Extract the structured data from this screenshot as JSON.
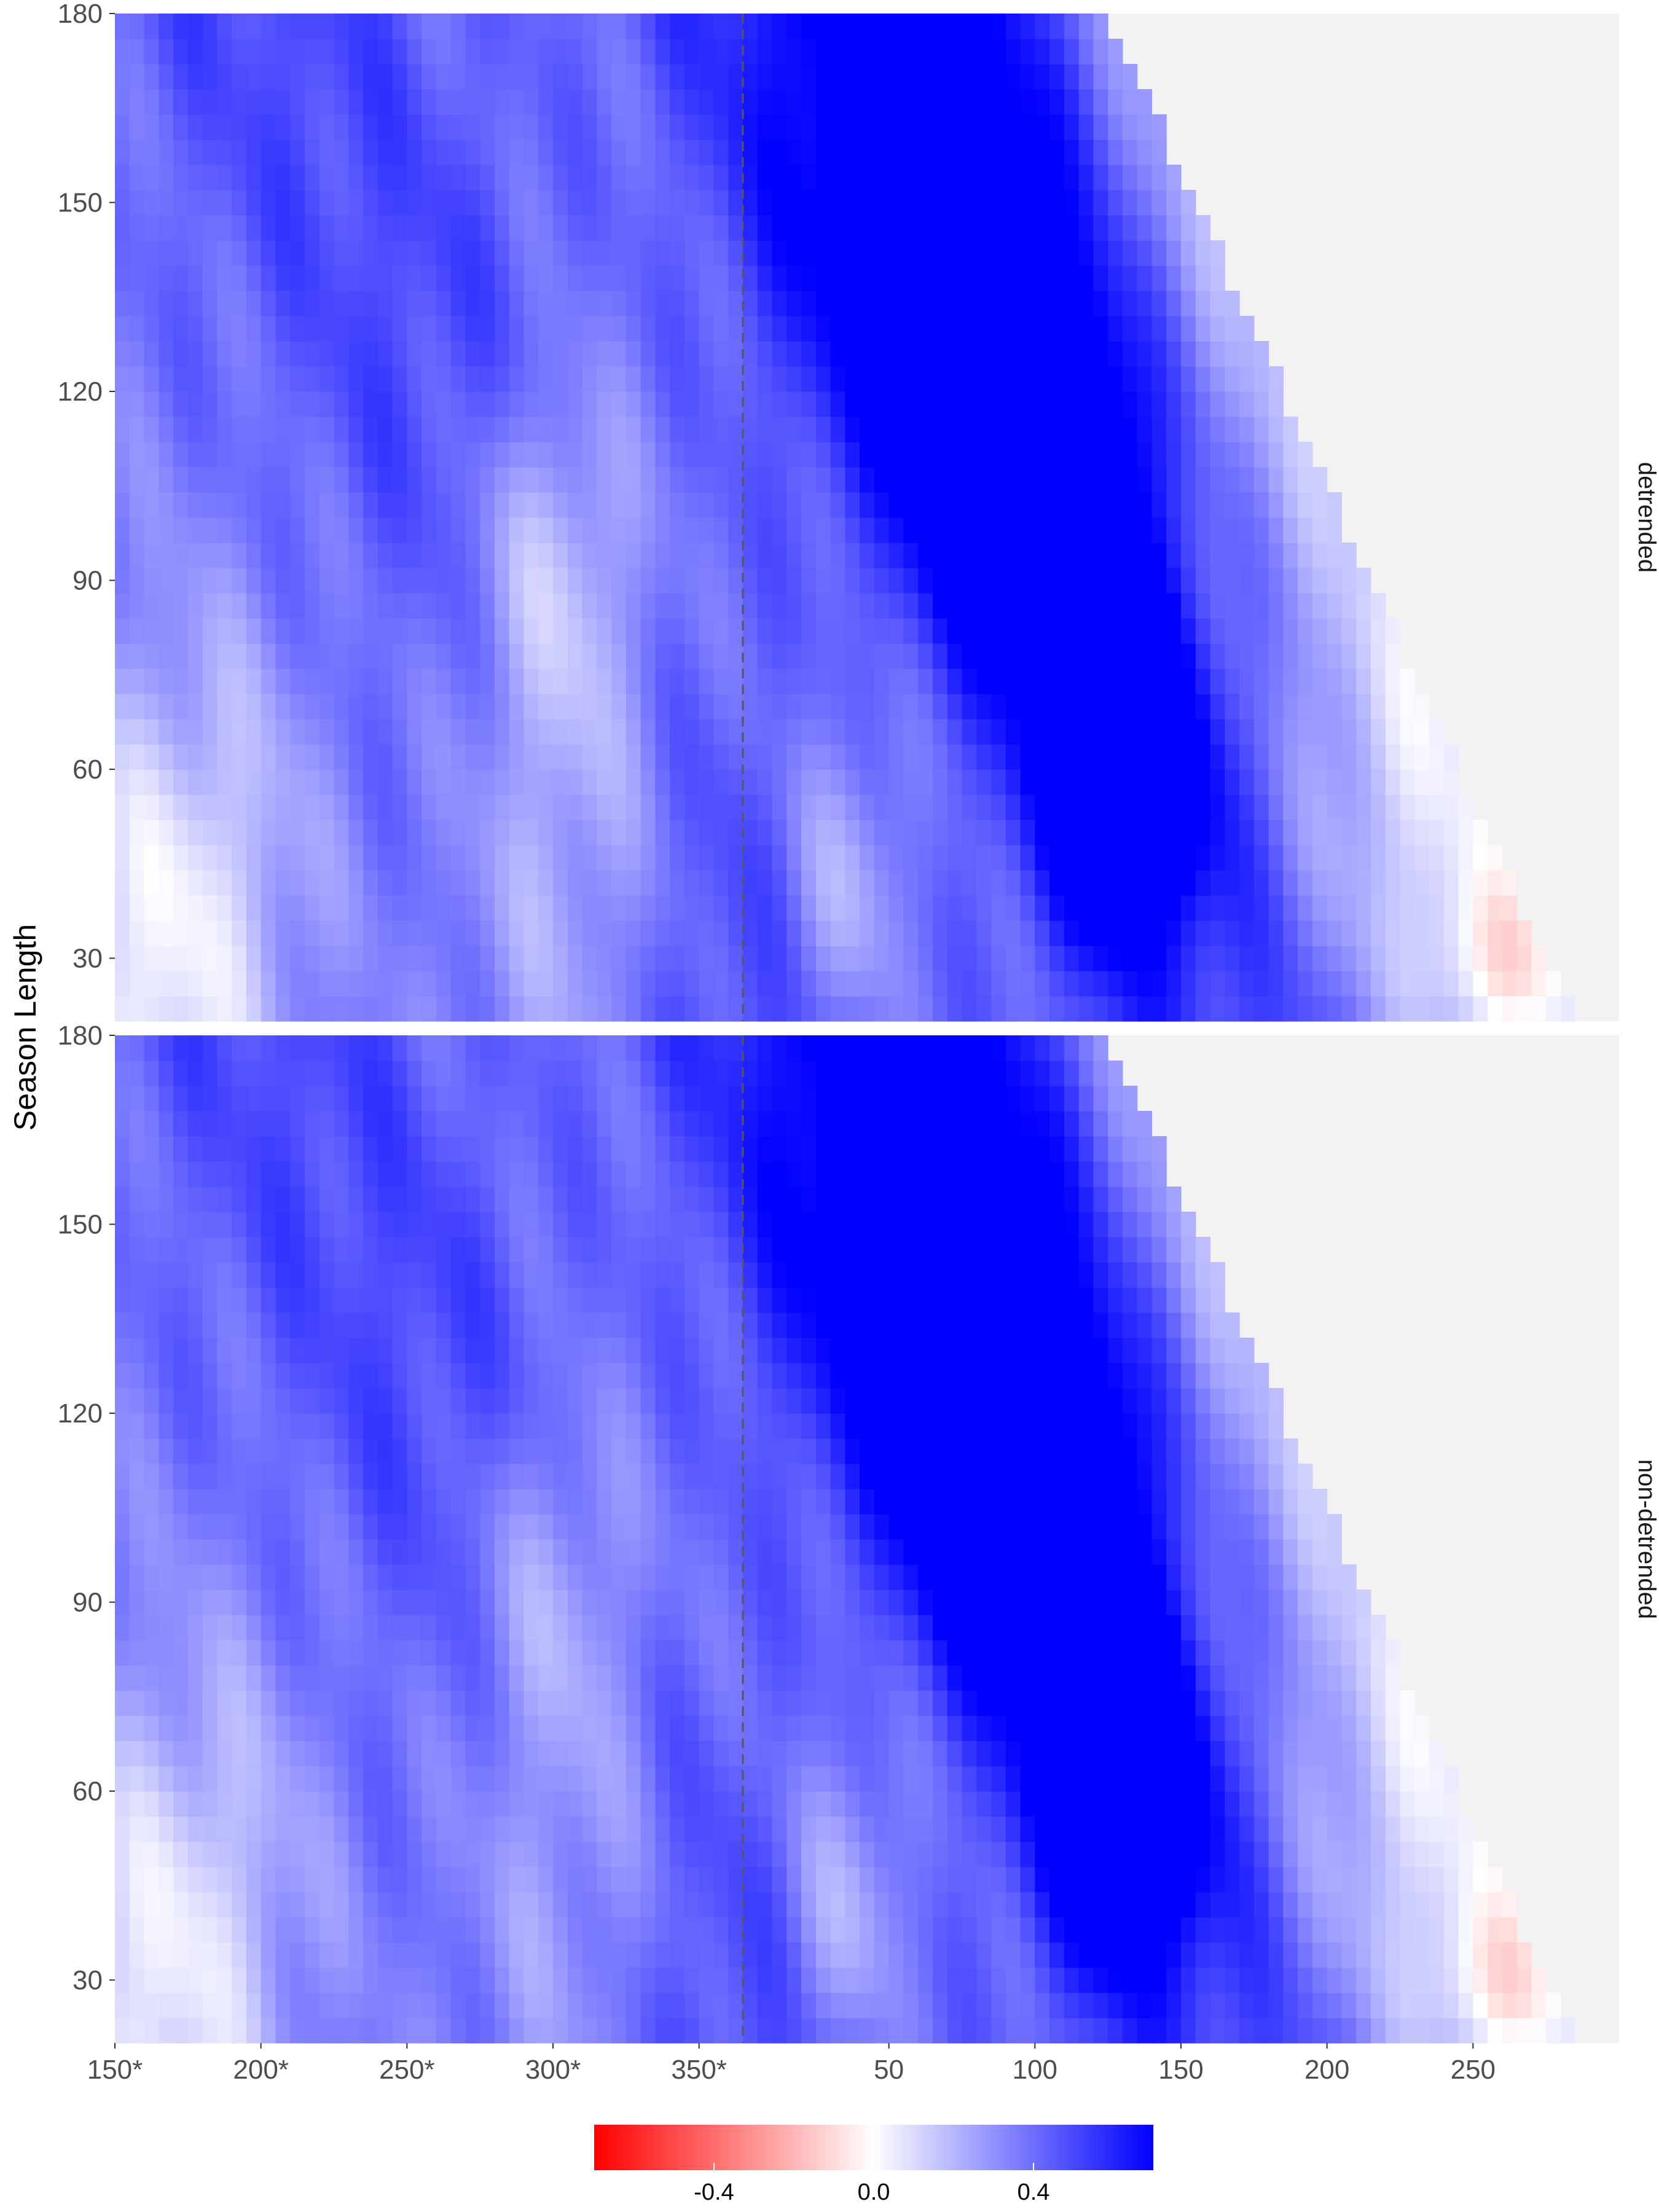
{
  "chart_data": {
    "type": "heatmap",
    "ylabel": "Season Length",
    "xlabel": "",
    "title": "",
    "x_ticks": [
      "150*",
      "200*",
      "250*",
      "300*",
      "350*",
      "50",
      "100",
      "150",
      "200",
      "250"
    ],
    "x_tick_positions_days": [
      150,
      200,
      250,
      300,
      350,
      415,
      465,
      515,
      565,
      615
    ],
    "x_range_days": [
      150,
      665
    ],
    "reference_line": {
      "style": "dashed",
      "x_days": 365,
      "meaning": "boundary between previous-year (*) and current-year day of year"
    },
    "y_ticks": [
      30,
      60,
      90,
      120,
      150,
      180
    ],
    "ylim": [
      20,
      180
    ],
    "fill_scale": {
      "low_color": "#ff0000",
      "mid_color": "#ffffff",
      "high_color": "#0000ff",
      "limits": [
        -0.7,
        0.7
      ],
      "ticks": [
        "-0.4",
        "0.0",
        "0.4"
      ],
      "tick_values": [
        -0.4,
        0.0,
        0.4
      ]
    },
    "missing_color": "#f2f2f2",
    "valid_region_rule": "start_day + season_length <= 665",
    "panels": [
      {
        "name": "detrended",
        "features": [
          {
            "kind": "blob",
            "center_day": 467,
            "center_len": 108,
            "spread_day": 25,
            "spread_len": 20,
            "value": 0.6
          },
          {
            "kind": "blob",
            "center_day": 495,
            "center_len": 60,
            "spread_day": 20,
            "spread_len": 20,
            "value": 0.55
          },
          {
            "kind": "blob",
            "center_day": 435,
            "center_len": 160,
            "spread_day": 40,
            "spread_len": 35,
            "value": 0.4
          },
          {
            "kind": "band",
            "center_end_day": 560,
            "width": 65,
            "value": 0.45
          },
          {
            "kind": "band",
            "center_end_day": 350,
            "width": 55,
            "value": 0.3
          },
          {
            "kind": "band",
            "center_end_day": 420,
            "width": 45,
            "value": 0.2
          },
          {
            "kind": "band",
            "center_end_day": 230,
            "width": 50,
            "value": 0.25
          },
          {
            "kind": "blob",
            "center_day": 175,
            "center_len": 40,
            "spread_day": 28,
            "spread_len": 30,
            "value": -0.3
          },
          {
            "kind": "blob",
            "center_day": 307,
            "center_len": 55,
            "spread_day": 25,
            "spread_len": 35,
            "value": -0.25
          },
          {
            "kind": "blob",
            "center_day": 300,
            "center_len": 95,
            "spread_day": 20,
            "spread_len": 20,
            "value": -0.2
          },
          {
            "kind": "blob",
            "center_day": 590,
            "center_len": 45,
            "spread_day": 30,
            "spread_len": 30,
            "value": -0.2
          },
          {
            "kind": "blob",
            "center_day": 625,
            "center_len": 28,
            "spread_day": 18,
            "spread_len": 10,
            "value": -0.25
          },
          {
            "kind": "blob",
            "center_day": 400,
            "center_len": 40,
            "spread_day": 14,
            "spread_len": 18,
            "value": -0.2
          }
        ]
      },
      {
        "name": "non-detrended",
        "features": [
          {
            "kind": "blob",
            "center_day": 467,
            "center_len": 108,
            "spread_day": 25,
            "spread_len": 20,
            "value": 0.6
          },
          {
            "kind": "blob",
            "center_day": 495,
            "center_len": 60,
            "spread_day": 20,
            "spread_len": 20,
            "value": 0.55
          },
          {
            "kind": "blob",
            "center_day": 435,
            "center_len": 160,
            "spread_day": 40,
            "spread_len": 35,
            "value": 0.4
          },
          {
            "kind": "band",
            "center_end_day": 560,
            "width": 65,
            "value": 0.45
          },
          {
            "kind": "band",
            "center_end_day": 350,
            "width": 55,
            "value": 0.3
          },
          {
            "kind": "band",
            "center_end_day": 420,
            "width": 45,
            "value": 0.2
          },
          {
            "kind": "band",
            "center_end_day": 230,
            "width": 50,
            "value": 0.25
          },
          {
            "kind": "blob",
            "center_day": 175,
            "center_len": 40,
            "spread_day": 28,
            "spread_len": 30,
            "value": -0.28
          },
          {
            "kind": "blob",
            "center_day": 307,
            "center_len": 55,
            "spread_day": 25,
            "spread_len": 35,
            "value": -0.2
          },
          {
            "kind": "blob",
            "center_day": 300,
            "center_len": 95,
            "spread_day": 20,
            "spread_len": 20,
            "value": -0.15
          },
          {
            "kind": "blob",
            "center_day": 590,
            "center_len": 45,
            "spread_day": 30,
            "spread_len": 30,
            "value": -0.2
          },
          {
            "kind": "blob",
            "center_day": 625,
            "center_len": 28,
            "spread_day": 18,
            "spread_len": 10,
            "value": -0.25
          },
          {
            "kind": "blob",
            "center_day": 400,
            "center_len": 40,
            "spread_day": 14,
            "spread_len": 18,
            "value": -0.2
          }
        ]
      }
    ]
  }
}
